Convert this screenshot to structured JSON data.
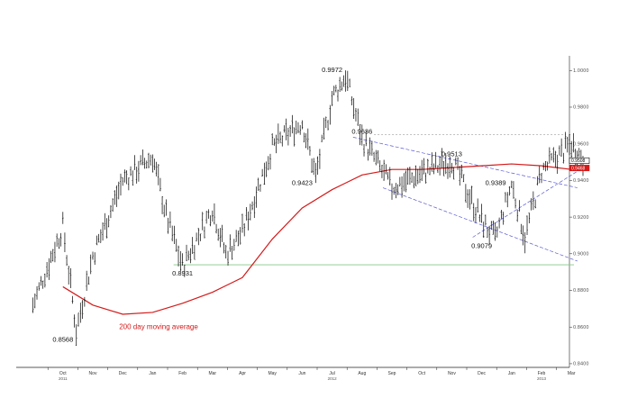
{
  "chart_data": {
    "type": "ohlc",
    "title": "",
    "xlabel": "",
    "ylabel": "",
    "ylim": [
      0.838,
      1.008
    ],
    "grid": false,
    "y_ticks": [
      0.84,
      0.86,
      0.88,
      0.9,
      0.92,
      0.94,
      0.96,
      0.98,
      1.0
    ],
    "x_months": [
      "Oct",
      "Nov",
      "Dec",
      "Jan",
      "Feb",
      "Mar",
      "Apr",
      "May",
      "Jun",
      "Jul",
      "Aug",
      "Sep",
      "Oct",
      "Nov",
      "Dec",
      "Jan",
      "Feb",
      "Mar"
    ],
    "year_labels": [
      "2011",
      "2012",
      "2013"
    ],
    "annotations": [
      {
        "label": "0.8568",
        "x": "Oct 2011",
        "y": 0.8568,
        "placement": "below"
      },
      {
        "label": "0.8931",
        "x": "Feb 2012",
        "y": 0.8931,
        "placement": "below"
      },
      {
        "label": "0.9423",
        "x": "Jun 2012",
        "y": 0.9423,
        "placement": "below"
      },
      {
        "label": "0.9972",
        "x": "Jul 2012",
        "y": 0.9972,
        "placement": "above"
      },
      {
        "label": "0.9636",
        "x": "Aug 2012",
        "y": 0.9636,
        "placement": "above"
      },
      {
        "label": "0.9513",
        "x": "Nov 2012",
        "y": 0.9513,
        "placement": "above"
      },
      {
        "label": "0.9389",
        "x": "Dec 2012",
        "y": 0.9389,
        "placement": "right"
      },
      {
        "label": "0.9079",
        "x": "Dec 2012",
        "y": 0.9079,
        "placement": "below"
      }
    ],
    "ma_label": "200 day moving average",
    "moving_average": [
      {
        "x": "Oct 2011",
        "y": 0.882
      },
      {
        "x": "Nov 2011",
        "y": 0.872
      },
      {
        "x": "Dec 2011",
        "y": 0.867
      },
      {
        "x": "Jan 2012",
        "y": 0.868
      },
      {
        "x": "Feb 2012",
        "y": 0.873
      },
      {
        "x": "Mar 2012",
        "y": 0.879
      },
      {
        "x": "Apr 2012",
        "y": 0.887
      },
      {
        "x": "May 2012",
        "y": 0.908
      },
      {
        "x": "Jun 2012",
        "y": 0.925
      },
      {
        "x": "Jul 2012",
        "y": 0.935
      },
      {
        "x": "Aug 2012",
        "y": 0.943
      },
      {
        "x": "Sep 2012",
        "y": 0.946
      },
      {
        "x": "Oct 2012",
        "y": 0.946
      },
      {
        "x": "Nov 2012",
        "y": 0.947
      },
      {
        "x": "Dec 2012",
        "y": 0.948
      },
      {
        "x": "Jan 2013",
        "y": 0.949
      },
      {
        "x": "Feb 2013",
        "y": 0.948
      },
      {
        "x": "Mar 2013",
        "y": 0.946
      }
    ],
    "price_path": [
      {
        "x": "Sep 2011",
        "y": 0.872
      },
      {
        "x": "Oct 2011",
        "y": 0.915
      },
      {
        "x": "Oct 2011",
        "y": 0.858
      },
      {
        "x": "Nov 2011",
        "y": 0.899
      },
      {
        "x": "Dec 2011",
        "y": 0.94
      },
      {
        "x": "Jan 2012",
        "y": 0.953
      },
      {
        "x": "Jan 2012",
        "y": 0.921
      },
      {
        "x": "Feb 2012",
        "y": 0.893
      },
      {
        "x": "Mar 2012",
        "y": 0.925
      },
      {
        "x": "Mar 2012",
        "y": 0.9
      },
      {
        "x": "Apr 2012",
        "y": 0.912
      },
      {
        "x": "May 2012",
        "y": 0.958
      },
      {
        "x": "Jun 2012",
        "y": 0.972
      },
      {
        "x": "Jun 2012",
        "y": 0.942
      },
      {
        "x": "Jul 2012",
        "y": 0.985
      },
      {
        "x": "Jul 2012",
        "y": 0.997
      },
      {
        "x": "Aug 2012",
        "y": 0.963
      },
      {
        "x": "Sep 2012",
        "y": 0.936
      },
      {
        "x": "Oct 2012",
        "y": 0.944
      },
      {
        "x": "Nov 2012",
        "y": 0.951
      },
      {
        "x": "Dec 2012",
        "y": 0.918
      },
      {
        "x": "Dec 2012",
        "y": 0.908
      },
      {
        "x": "Jan 2013",
        "y": 0.938
      },
      {
        "x": "Jan 2013",
        "y": 0.909
      },
      {
        "x": "Feb 2013",
        "y": 0.945
      },
      {
        "x": "Mar 2013",
        "y": 0.96
      },
      {
        "x": "Mar 2013",
        "y": 0.95
      }
    ],
    "trendlines": [
      {
        "style": "dashed",
        "from": {
          "x": "Aug 2012",
          "y": 0.9636
        },
        "to": {
          "x": "Mar 2013",
          "y": 0.936
        }
      },
      {
        "style": "dashed",
        "from": {
          "x": "Sep 2012",
          "y": 0.936
        },
        "to": {
          "x": "Mar 2013",
          "y": 0.896
        }
      },
      {
        "style": "dashed",
        "from": {
          "x": "Dec 2012",
          "y": 0.909
        },
        "to": {
          "x": "Mar 2013",
          "y": 0.945
        }
      },
      {
        "style": "solid",
        "from": {
          "x": "Feb 2012",
          "y": 0.894
        },
        "to": {
          "x": "Mar 2013",
          "y": 0.894
        }
      }
    ],
    "price_tags": [
      {
        "label": "0.9508",
        "y": 0.9508,
        "color": "#000000"
      },
      {
        "label": "0.9468",
        "y": 0.9468,
        "color": "#d41a1a"
      }
    ],
    "colors": {
      "price": "#000000",
      "moving_average": "#d41a1a",
      "trendline": "#5a5ad6",
      "support": "#86c986",
      "resistance": "#9c9c9c"
    }
  }
}
